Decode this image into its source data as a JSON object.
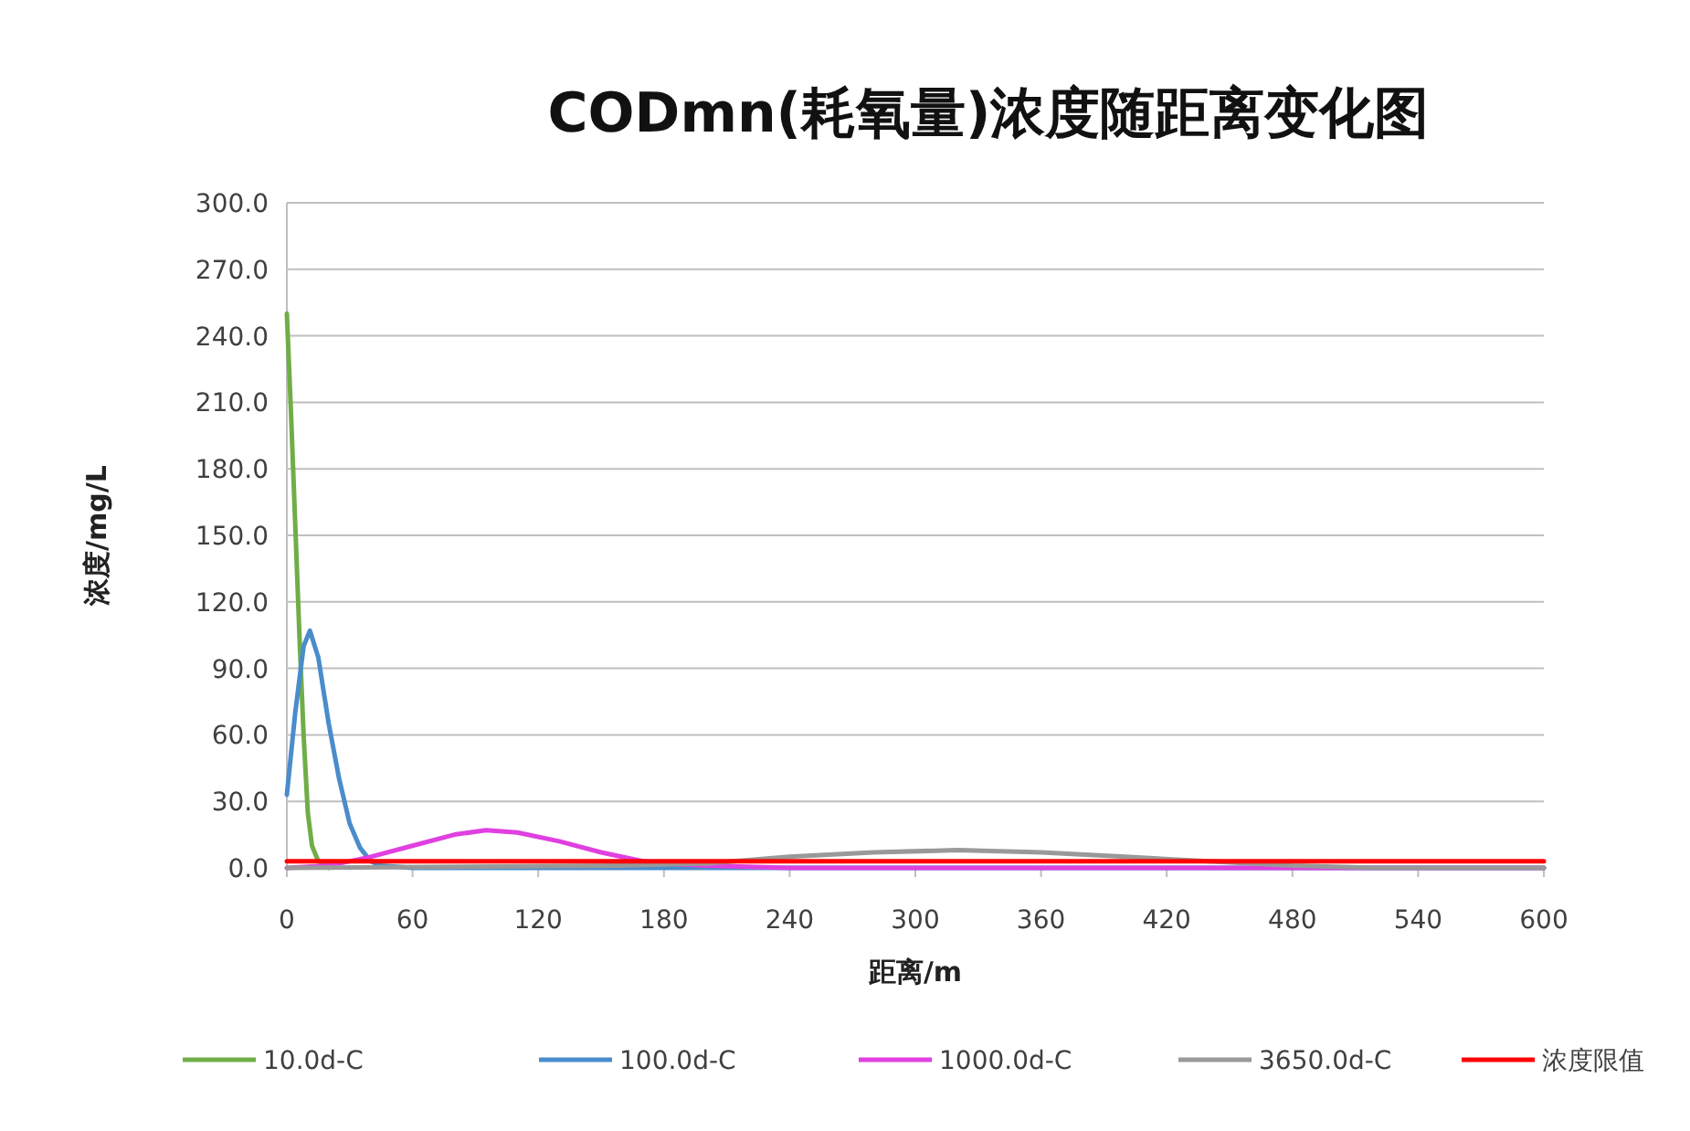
{
  "chart_data": {
    "type": "line",
    "title": "CODmn(耗氧量)浓度随距离变化图",
    "xlabel": "距离/m",
    "ylabel": "浓度/mg/L",
    "xlim": [
      0,
      600
    ],
    "xticks": [
      0,
      60,
      120,
      180,
      240,
      300,
      360,
      420,
      480,
      540,
      600
    ],
    "ylim": [
      0,
      300
    ],
    "yticks": [
      {
        "value": 0,
        "label": "0.0"
      },
      {
        "value": 30,
        "label": "30.0"
      },
      {
        "value": 60,
        "label": "60.0"
      },
      {
        "value": 90,
        "label": "90.0"
      },
      {
        "value": 120,
        "label": "120.0"
      },
      {
        "value": 150,
        "label": "150.0"
      },
      {
        "value": 180,
        "label": "180.0"
      },
      {
        "value": 210,
        "label": "210.0"
      },
      {
        "value": 240,
        "label": "240.0"
      },
      {
        "value": 270,
        "label": "270.0"
      },
      {
        "value": 300,
        "label": "300.0"
      }
    ],
    "grid": "y",
    "legend": "bottom",
    "marker": "none",
    "line_style": "solid",
    "series": [
      {
        "name": "10.0d-C",
        "color": "#70ad47",
        "x": [
          0,
          2,
          4,
          6,
          8,
          10,
          12,
          15,
          20
        ],
        "values": [
          250,
          205,
          155,
          105,
          60,
          25,
          10,
          3,
          0
        ]
      },
      {
        "name": "100.0d-C",
        "color": "#4a8ccc",
        "x": [
          0,
          4,
          8,
          11,
          15,
          20,
          25,
          30,
          35,
          40,
          45,
          60,
          600
        ],
        "values": [
          33,
          70,
          100,
          107,
          95,
          65,
          40,
          20,
          9,
          3,
          1,
          0,
          0
        ]
      },
      {
        "name": "1000.0d-C",
        "color": "#e040e0",
        "x": [
          0,
          20,
          40,
          60,
          80,
          95,
          110,
          130,
          150,
          170,
          180,
          200,
          240,
          600
        ],
        "values": [
          0,
          1,
          5,
          10,
          15,
          17,
          16,
          12,
          7,
          3,
          2,
          1,
          0,
          0
        ]
      },
      {
        "name": "3650.0d-C",
        "color": "#999999",
        "x": [
          0,
          160,
          200,
          240,
          280,
          320,
          360,
          400,
          440,
          480,
          520,
          600
        ],
        "values": [
          0,
          1,
          2,
          5,
          7,
          8,
          7,
          5,
          3,
          1,
          0,
          0
        ]
      },
      {
        "name": "浓度限值",
        "color": "#ff0000",
        "x": [
          0,
          600
        ],
        "values": [
          3,
          3
        ]
      }
    ]
  }
}
